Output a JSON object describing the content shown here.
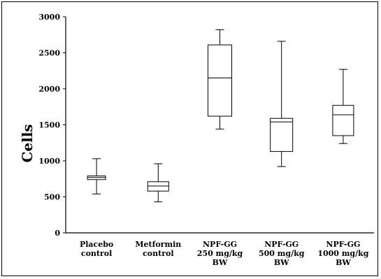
{
  "chart_data": {
    "type": "box",
    "ylabel": "Cells",
    "ylim": [
      0,
      3000
    ],
    "yticks": [
      "0",
      "500",
      "1000",
      "1500",
      "2000",
      "2500",
      "3000"
    ],
    "categories": [
      [
        "Placebo",
        "control"
      ],
      [
        "Metformin",
        "control"
      ],
      [
        "NPF-GG",
        "250 mg/kg",
        "BW"
      ],
      [
        "NPF-GG",
        "500 mg/kg",
        "BW"
      ],
      [
        "NPF-GG",
        "1000 mg/kg",
        "BW"
      ]
    ],
    "series": [
      {
        "min": 540,
        "q1": 740,
        "median": 770,
        "q3": 790,
        "max": 1030
      },
      {
        "min": 430,
        "q1": 580,
        "median": 650,
        "q3": 710,
        "max": 960
      },
      {
        "min": 1440,
        "q1": 1620,
        "median": 2150,
        "q3": 2610,
        "max": 2820
      },
      {
        "min": 920,
        "q1": 1130,
        "median": 1540,
        "q3": 1590,
        "max": 2660
      },
      {
        "min": 1240,
        "q1": 1350,
        "median": 1640,
        "q3": 1770,
        "max": 2270
      }
    ],
    "grid": false
  }
}
